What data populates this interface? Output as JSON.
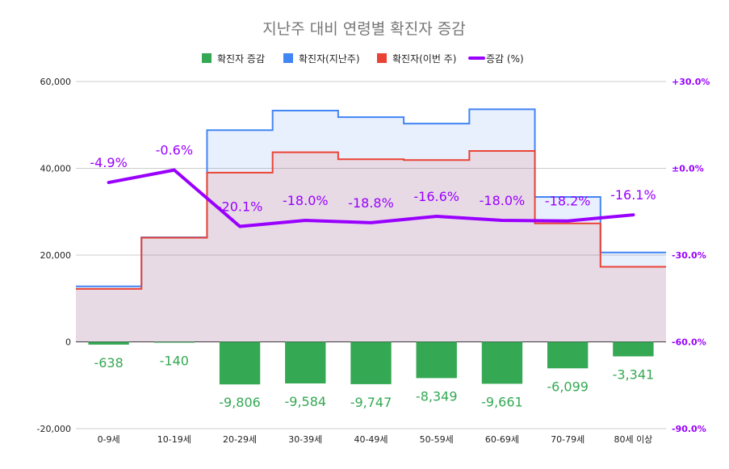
{
  "chart_data": {
    "type": "combo",
    "title": "지난주 대비 연령별 확진자 증감",
    "categories": [
      "0-9세",
      "10-19세",
      "20-29세",
      "30-39세",
      "40-49세",
      "50-59세",
      "60-69세",
      "70-79세",
      "80세 이상"
    ],
    "series": [
      {
        "name": "확진자 증감",
        "kind": "bar",
        "axis": "left",
        "color": "#34a853",
        "values": [
          -638,
          -140,
          -9806,
          -9584,
          -9747,
          -8349,
          -9661,
          -6099,
          -3341
        ],
        "labels": [
          "-638",
          "-140",
          "-9,806",
          "-9,584",
          "-9,747",
          "-8,349",
          "-9,661",
          "-6,099",
          "-3,341"
        ]
      },
      {
        "name": "확진자(지난주)",
        "kind": "stepped-area",
        "axis": "left",
        "color": "#4285f4",
        "values": [
          12800,
          24100,
          48800,
          53300,
          51800,
          50300,
          53600,
          33400,
          20600
        ]
      },
      {
        "name": "확진자(이번 주)",
        "kind": "stepped-area",
        "axis": "left",
        "color": "#ea4335",
        "values": [
          12200,
          24000,
          39000,
          43700,
          42100,
          41900,
          44000,
          27300,
          17300
        ]
      },
      {
        "name": "증감 (%)",
        "kind": "line",
        "axis": "right",
        "color": "#9900ff",
        "values": [
          -4.9,
          -0.6,
          -20.1,
          -18.0,
          -18.8,
          -16.6,
          -18.0,
          -18.2,
          -16.1
        ],
        "labels": [
          "-4.9%",
          "-0.6%",
          "-20.1%",
          "-18.0%",
          "-18.8%",
          "-16.6%",
          "-18.0%",
          "-18.2%",
          "-16.1%"
        ]
      }
    ],
    "left_axis": {
      "min": -20000,
      "max": 60000,
      "ticks": [
        -20000,
        0,
        20000,
        40000,
        60000
      ],
      "tick_labels": [
        "-20,000",
        "0",
        "20,000",
        "40,000",
        "60,000"
      ]
    },
    "right_axis": {
      "min": -90,
      "max": 30,
      "ticks": [
        -90,
        -60,
        -30,
        0,
        30
      ],
      "tick_labels": [
        "-90.0%",
        "-60.0%",
        "-30.0%",
        "±0.0%",
        "+30.0%"
      ],
      "color": "#9900ff"
    },
    "grid": true,
    "legend_position": "top"
  }
}
